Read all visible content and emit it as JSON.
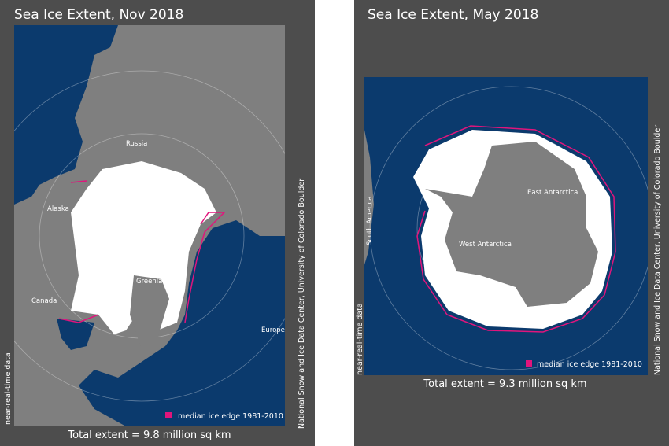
{
  "panels": [
    {
      "title": "Sea Ice Extent, Nov 2018",
      "places": [
        "Russia",
        "Alaska",
        "Canada",
        "Greenland",
        "Europe"
      ],
      "legend": "median ice edge 1981-2010",
      "total": "Total extent = 9.8 million sq km",
      "note": "near-real-time data",
      "credit": "National Snow and Ice Data Center, University of Colorado Boulder"
    },
    {
      "title": "Sea Ice Extent, May 2018",
      "places": [
        "South America",
        "East Antarctica",
        "West Antarctica"
      ],
      "legend": "median ice edge 1981-2010",
      "total": "Total extent = 9.3 million sq km",
      "note": "near-real-time data",
      "credit": "National Snow and Ice Data Center, University of Colorado Boulder"
    }
  ]
}
